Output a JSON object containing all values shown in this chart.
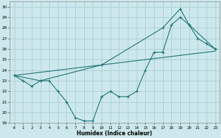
{
  "xlabel": "Humidex (Indice chaleur)",
  "ylabel": "",
  "background_color": "#cce8ec",
  "grid_color": "#aaccd4",
  "line_color": "#1a7070",
  "xlim": [
    -0.5,
    23.5
  ],
  "ylim": [
    19,
    30.5
  ],
  "xticks": [
    0,
    1,
    2,
    3,
    4,
    5,
    6,
    7,
    8,
    9,
    10,
    11,
    12,
    13,
    14,
    15,
    16,
    17,
    18,
    19,
    20,
    21,
    22,
    23
  ],
  "yticks": [
    19,
    20,
    21,
    22,
    23,
    24,
    25,
    26,
    27,
    28,
    29,
    30
  ],
  "line1_x": [
    0,
    1,
    2,
    3,
    4,
    5,
    6,
    7,
    8,
    9,
    10,
    11,
    12,
    13,
    14,
    15,
    16,
    17,
    18,
    19,
    20,
    21,
    22,
    23
  ],
  "line1_y": [
    23.5,
    23.0,
    22.5,
    23.0,
    23.0,
    22.0,
    21.0,
    19.5,
    19.2,
    19.2,
    21.5,
    22.0,
    21.5,
    21.5,
    22.0,
    24.0,
    25.7,
    25.7,
    28.3,
    29.0,
    28.3,
    27.0,
    26.5,
    26.0
  ],
  "line2_x": [
    0,
    23
  ],
  "line2_y": [
    23.5,
    25.8
  ],
  "line3_x": [
    0,
    3,
    10,
    17,
    19,
    20,
    23
  ],
  "line3_y": [
    23.5,
    23.0,
    24.5,
    28.0,
    29.8,
    28.3,
    26.0
  ]
}
